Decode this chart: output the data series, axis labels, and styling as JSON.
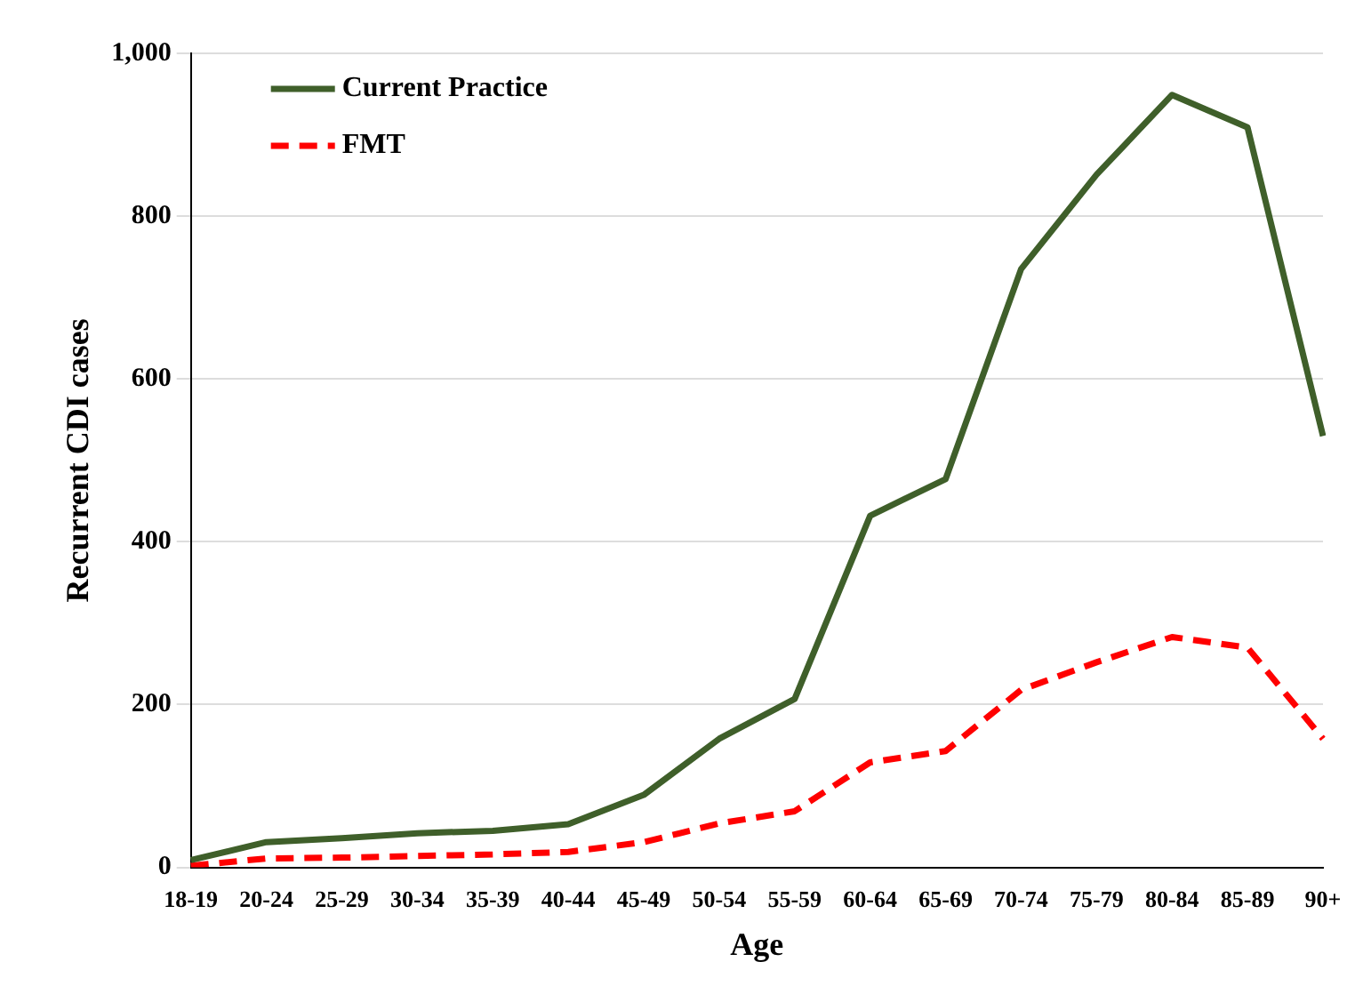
{
  "chart_data": {
    "type": "line",
    "xlabel": "Age",
    "ylabel": "Recurrent CDI cases",
    "categories": [
      "18-19",
      "20-24",
      "25-29",
      "30-34",
      "35-39",
      "40-44",
      "45-49",
      "50-54",
      "55-59",
      "60-64",
      "65-69",
      "70-74",
      "75-79",
      "80-84",
      "85-89",
      "90+"
    ],
    "series": [
      {
        "name": "Current Practice",
        "color": "#3f5f2a",
        "line_style": "solid",
        "values": [
          9,
          31,
          36,
          42,
          45,
          53,
          89,
          158,
          207,
          432,
          477,
          735,
          851,
          949,
          909,
          530
        ]
      },
      {
        "name": "FMT",
        "color": "#ff0000",
        "line_style": "dashed",
        "values": [
          2,
          11,
          12,
          14,
          16,
          19,
          31,
          54,
          69,
          129,
          143,
          218,
          252,
          283,
          270,
          158
        ]
      }
    ],
    "ylim": [
      0,
      1000
    ],
    "yticks": [
      0,
      200,
      400,
      600,
      800,
      {
        "value": 1000,
        "label": "1,000"
      }
    ],
    "grid": "y",
    "legend": "top left",
    "marker": "none"
  }
}
